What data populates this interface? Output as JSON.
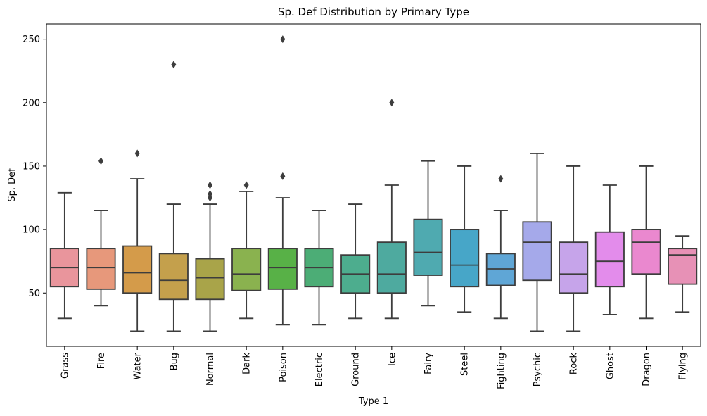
{
  "chart_data": {
    "type": "box",
    "title": "Sp. Def Distribution by Primary Type",
    "xlabel": "Type 1",
    "ylabel": "Sp. Def",
    "ylim": [
      8,
      262
    ],
    "yticks": [
      50,
      100,
      150,
      200,
      250
    ],
    "grid": false,
    "legend": "none",
    "median_color": "#3d3d3d",
    "categories": [
      "Grass",
      "Fire",
      "Water",
      "Bug",
      "Normal",
      "Dark",
      "Poison",
      "Electric",
      "Ground",
      "Ice",
      "Fairy",
      "Steel",
      "Fighting",
      "Psychic",
      "Rock",
      "Ghost",
      "Dragon",
      "Flying"
    ],
    "boxes": [
      {
        "category": "Grass",
        "whislo": 30,
        "q1": 55,
        "med": 70,
        "q3": 85,
        "whishi": 129,
        "fliers": [],
        "color": "#e9959c"
      },
      {
        "category": "Fire",
        "whislo": 40,
        "q1": 53,
        "med": 70,
        "q3": 85,
        "whishi": 115,
        "fliers": [
          154
        ],
        "color": "#e7987b"
      },
      {
        "category": "Water",
        "whislo": 20,
        "q1": 50,
        "med": 66,
        "q3": 87,
        "whishi": 140,
        "fliers": [
          160
        ],
        "color": "#d49b4a"
      },
      {
        "category": "Bug",
        "whislo": 20,
        "q1": 45,
        "med": 60,
        "q3": 81,
        "whishi": 120,
        "fliers": [
          230
        ],
        "color": "#c4a04c"
      },
      {
        "category": "Normal",
        "whislo": 20,
        "q1": 45,
        "med": 62,
        "q3": 77,
        "whishi": 120,
        "fliers": [
          125,
          128,
          135
        ],
        "color": "#a9a449"
      },
      {
        "category": "Dark",
        "whislo": 30,
        "q1": 52,
        "med": 65,
        "q3": 85,
        "whishi": 130,
        "fliers": [
          135
        ],
        "color": "#8ab24f"
      },
      {
        "category": "Poison",
        "whislo": 25,
        "q1": 53,
        "med": 70,
        "q3": 85,
        "whishi": 125,
        "fliers": [
          142,
          250
        ],
        "color": "#58b147"
      },
      {
        "category": "Electric",
        "whislo": 25,
        "q1": 55,
        "med": 70,
        "q3": 85,
        "whishi": 115,
        "fliers": [],
        "color": "#4cad76"
      },
      {
        "category": "Ground",
        "whislo": 30,
        "q1": 50,
        "med": 65,
        "q3": 80,
        "whishi": 120,
        "fliers": [],
        "color": "#4dad8e"
      },
      {
        "category": "Ice",
        "whislo": 30,
        "q1": 50,
        "med": 65,
        "q3": 90,
        "whishi": 135,
        "fliers": [
          200
        ],
        "color": "#4eaa9f"
      },
      {
        "category": "Fairy",
        "whislo": 40,
        "q1": 64,
        "med": 82,
        "q3": 108,
        "whishi": 154,
        "fliers": [],
        "color": "#4faab0"
      },
      {
        "category": "Steel",
        "whislo": 35,
        "q1": 55,
        "med": 72,
        "q3": 100,
        "whishi": 150,
        "fliers": [],
        "color": "#47a6c8"
      },
      {
        "category": "Fighting",
        "whislo": 30,
        "q1": 56,
        "med": 69,
        "q3": 81,
        "whishi": 115,
        "fliers": [
          140
        ],
        "color": "#5fa6d6"
      },
      {
        "category": "Psychic",
        "whislo": 20,
        "q1": 60,
        "med": 90,
        "q3": 106,
        "whishi": 160,
        "fliers": [],
        "color": "#a5a9ea"
      },
      {
        "category": "Rock",
        "whislo": 20,
        "q1": 50,
        "med": 65,
        "q3": 90,
        "whishi": 150,
        "fliers": [],
        "color": "#c6a4ea"
      },
      {
        "category": "Ghost",
        "whislo": 33,
        "q1": 55,
        "med": 75,
        "q3": 98,
        "whishi": 135,
        "fliers": [],
        "color": "#e38ceb"
      },
      {
        "category": "Dragon",
        "whislo": 30,
        "q1": 65,
        "med": 90,
        "q3": 100,
        "whishi": 150,
        "fliers": [],
        "color": "#ea88cf"
      },
      {
        "category": "Flying",
        "whislo": 35,
        "q1": 57,
        "med": 80,
        "q3": 85,
        "whishi": 95,
        "fliers": [],
        "color": "#e791b6"
      }
    ]
  }
}
